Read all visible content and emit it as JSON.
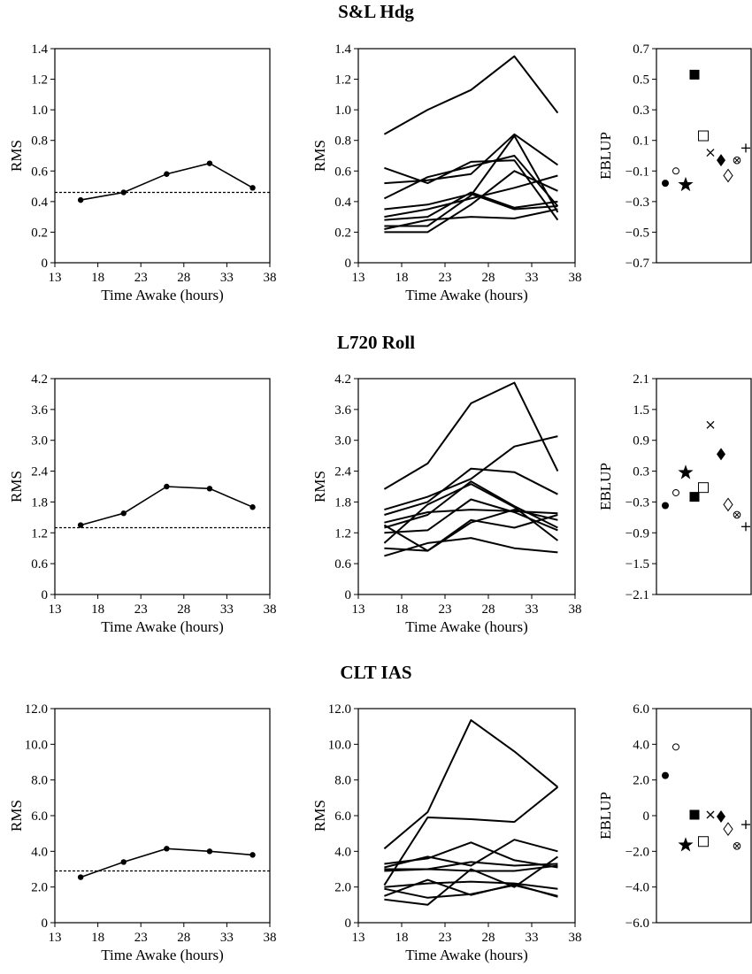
{
  "chart_data": [
    {
      "title": "S&L Hdg",
      "mean_panel": {
        "type": "line",
        "xlabel": "Time Awake (hours)",
        "ylabel": "RMS",
        "xlim": [
          13,
          38
        ],
        "ylim": [
          0,
          1.4
        ],
        "x_ticks": [
          13,
          18,
          23,
          28,
          33,
          38
        ],
        "y_ticks": [
          "0",
          "0.2",
          "0.4",
          "0.6",
          "0.8",
          "1.0",
          "1.2",
          "1.4"
        ],
        "x": [
          16,
          21,
          26,
          31,
          36
        ],
        "values": [
          0.41,
          0.46,
          0.58,
          0.65,
          0.49
        ],
        "reference_line": 0.46
      },
      "individual_panel": {
        "type": "line",
        "xlabel": "Time Awake (hours)",
        "ylabel": "RMS",
        "xlim": [
          13,
          38
        ],
        "ylim": [
          0,
          1.4
        ],
        "x_ticks": [
          13,
          18,
          23,
          28,
          33,
          38
        ],
        "y_ticks": [
          "0",
          "0.2",
          "0.4",
          "0.6",
          "0.8",
          "1.0",
          "1.2",
          "1.4"
        ],
        "x": [
          16,
          21,
          26,
          31,
          36
        ],
        "series": [
          {
            "values": [
              0.84,
              1.0,
              1.13,
              1.35,
              0.98
            ]
          },
          {
            "values": [
              0.62,
              0.52,
              0.66,
              0.67,
              0.28
            ]
          },
          {
            "values": [
              0.52,
              0.54,
              0.58,
              0.84,
              0.64
            ]
          },
          {
            "values": [
              0.42,
              0.56,
              0.63,
              0.7,
              0.37
            ]
          },
          {
            "values": [
              0.35,
              0.38,
              0.45,
              0.35,
              0.37
            ]
          },
          {
            "values": [
              0.3,
              0.35,
              0.42,
              0.49,
              0.57
            ]
          },
          {
            "values": [
              0.28,
              0.3,
              0.46,
              0.36,
              0.4
            ]
          },
          {
            "values": [
              0.24,
              0.24,
              0.44,
              0.83,
              0.33
            ]
          },
          {
            "values": [
              0.22,
              0.28,
              0.3,
              0.29,
              0.35
            ]
          },
          {
            "values": [
              0.2,
              0.2,
              0.38,
              0.6,
              0.47
            ]
          }
        ]
      },
      "eblup_panel": {
        "type": "scatter",
        "ylabel": "EBLUP",
        "ylim": [
          -0.7,
          0.7
        ],
        "y_ticks": [
          "0.7",
          "0.5",
          "0.3",
          "0.1",
          "−0.1",
          "−0.3",
          "−0.5",
          "−0.7"
        ],
        "points": [
          {
            "marker": "filled-circle",
            "value": -0.18
          },
          {
            "marker": "open-circle",
            "value": -0.1
          },
          {
            "marker": "star",
            "value": -0.19
          },
          {
            "marker": "filled-square",
            "value": 0.53
          },
          {
            "marker": "open-square",
            "value": 0.13
          },
          {
            "marker": "x-mark",
            "value": 0.02
          },
          {
            "marker": "filled-diamond",
            "value": -0.03
          },
          {
            "marker": "open-diamond",
            "value": -0.13
          },
          {
            "marker": "circled-x",
            "value": -0.03
          },
          {
            "marker": "plus",
            "value": 0.05
          }
        ]
      }
    },
    {
      "title": "L720 Roll",
      "mean_panel": {
        "type": "line",
        "xlabel": "Time Awake (hours)",
        "ylabel": "RMS",
        "xlim": [
          13,
          38
        ],
        "ylim": [
          0,
          4.2
        ],
        "x_ticks": [
          13,
          18,
          23,
          28,
          33,
          38
        ],
        "y_ticks": [
          "0",
          "0.6",
          "1.2",
          "1.8",
          "2.4",
          "3.0",
          "3.6",
          "4.2"
        ],
        "x": [
          16,
          21,
          26,
          31,
          36
        ],
        "values": [
          1.35,
          1.58,
          2.1,
          2.06,
          1.7
        ],
        "reference_line": 1.3
      },
      "individual_panel": {
        "type": "line",
        "xlabel": "Time Awake (hours)",
        "ylabel": "RMS",
        "xlim": [
          13,
          38
        ],
        "ylim": [
          0,
          4.2
        ],
        "x_ticks": [
          13,
          18,
          23,
          28,
          33,
          38
        ],
        "y_ticks": [
          "0",
          "0.6",
          "1.2",
          "1.8",
          "2.4",
          "3.0",
          "3.6",
          "4.2"
        ],
        "x": [
          16,
          21,
          26,
          31,
          36
        ],
        "series": [
          {
            "values": [
              2.05,
              2.55,
              3.72,
              4.12,
              2.4
            ]
          },
          {
            "values": [
              1.65,
              1.9,
              2.25,
              2.88,
              3.08
            ]
          },
          {
            "values": [
              1.55,
              1.8,
              2.45,
              2.38,
              1.95
            ]
          },
          {
            "values": [
              1.4,
              1.6,
              1.65,
              1.62,
              1.58
            ]
          },
          {
            "values": [
              1.3,
              1.55,
              2.2,
              1.72,
              1.3
            ]
          },
          {
            "values": [
              1.2,
              1.25,
              1.85,
              1.6,
              1.25
            ]
          },
          {
            "values": [
              1.0,
              1.75,
              2.15,
              1.7,
              1.05
            ]
          },
          {
            "values": [
              1.35,
              0.85,
              1.45,
              1.3,
              1.55
            ]
          },
          {
            "values": [
              0.9,
              0.85,
              1.4,
              1.65,
              1.45
            ]
          },
          {
            "values": [
              0.75,
              1.0,
              1.1,
              0.9,
              0.82
            ]
          }
        ]
      },
      "eblup_panel": {
        "type": "scatter",
        "ylabel": "EBLUP",
        "ylim": [
          -2.1,
          2.1
        ],
        "y_ticks": [
          "2.1",
          "1.5",
          "0.9",
          "0.3",
          "−0.3",
          "−0.9",
          "−1.5",
          "−2.1"
        ],
        "points": [
          {
            "marker": "filled-circle",
            "value": -0.37
          },
          {
            "marker": "open-circle",
            "value": -0.12
          },
          {
            "marker": "star",
            "value": 0.27
          },
          {
            "marker": "filled-square",
            "value": -0.2
          },
          {
            "marker": "open-square",
            "value": -0.02
          },
          {
            "marker": "x-mark",
            "value": 1.2
          },
          {
            "marker": "filled-diamond",
            "value": 0.63
          },
          {
            "marker": "open-diamond",
            "value": -0.35
          },
          {
            "marker": "circled-x",
            "value": -0.55
          },
          {
            "marker": "plus",
            "value": -0.78
          }
        ]
      }
    },
    {
      "title": "CLT IAS",
      "mean_panel": {
        "type": "line",
        "xlabel": "Time Awake (hours)",
        "ylabel": "RMS",
        "xlim": [
          13,
          38
        ],
        "ylim": [
          0,
          12
        ],
        "x_ticks": [
          13,
          18,
          23,
          28,
          33,
          38
        ],
        "y_ticks": [
          "0",
          "2.0",
          "4.0",
          "6.0",
          "8.0",
          "10.0",
          "12.0"
        ],
        "x": [
          16,
          21,
          26,
          31,
          36
        ],
        "values": [
          2.55,
          3.4,
          4.15,
          4.0,
          3.8
        ],
        "reference_line": 2.9
      },
      "individual_panel": {
        "type": "line",
        "xlabel": "Time Awake (hours)",
        "ylabel": "RMS",
        "xlim": [
          13,
          38
        ],
        "ylim": [
          0,
          12
        ],
        "x_ticks": [
          13,
          18,
          23,
          28,
          33,
          38
        ],
        "y_ticks": [
          "0",
          "2.0",
          "4.0",
          "6.0",
          "8.0",
          "10.0",
          "12.0"
        ],
        "x": [
          16,
          21,
          26,
          31,
          36
        ],
        "series": [
          {
            "values": [
              4.15,
              6.2,
              11.35,
              9.6,
              7.6
            ]
          },
          {
            "values": [
              2.1,
              5.9,
              5.8,
              5.65,
              7.6
            ]
          },
          {
            "values": [
              3.3,
              3.6,
              4.5,
              3.5,
              3.1
            ]
          },
          {
            "values": [
              3.1,
              3.7,
              3.2,
              4.65,
              4.0
            ]
          },
          {
            "values": [
              3.0,
              3.0,
              3.4,
              3.2,
              3.3
            ]
          },
          {
            "values": [
              2.9,
              3.0,
              2.9,
              2.9,
              3.2
            ]
          },
          {
            "values": [
              2.0,
              2.2,
              2.3,
              2.2,
              1.9
            ]
          },
          {
            "values": [
              1.9,
              1.4,
              1.6,
              2.1,
              1.5
            ]
          },
          {
            "values": [
              1.5,
              2.4,
              1.55,
              2.15,
              1.45
            ]
          },
          {
            "values": [
              1.3,
              1.0,
              3.0,
              2.0,
              3.7
            ]
          }
        ]
      },
      "eblup_panel": {
        "type": "scatter",
        "ylabel": "EBLUP",
        "ylim": [
          -6.0,
          6.0
        ],
        "y_ticks": [
          "6.0",
          "4.0",
          "2.0",
          "0",
          "−2.0",
          "−4.0",
          "−6.0"
        ],
        "points": [
          {
            "marker": "filled-circle",
            "value": 2.25
          },
          {
            "marker": "open-circle",
            "value": 3.85
          },
          {
            "marker": "star",
            "value": -1.65
          },
          {
            "marker": "filled-square",
            "value": 0.05
          },
          {
            "marker": "open-square",
            "value": -1.45
          },
          {
            "marker": "x-mark",
            "value": 0.05
          },
          {
            "marker": "filled-diamond",
            "value": -0.05
          },
          {
            "marker": "open-diamond",
            "value": -0.75
          },
          {
            "marker": "circled-x",
            "value": -1.7
          },
          {
            "marker": "plus",
            "value": -0.5
          }
        ]
      }
    }
  ]
}
